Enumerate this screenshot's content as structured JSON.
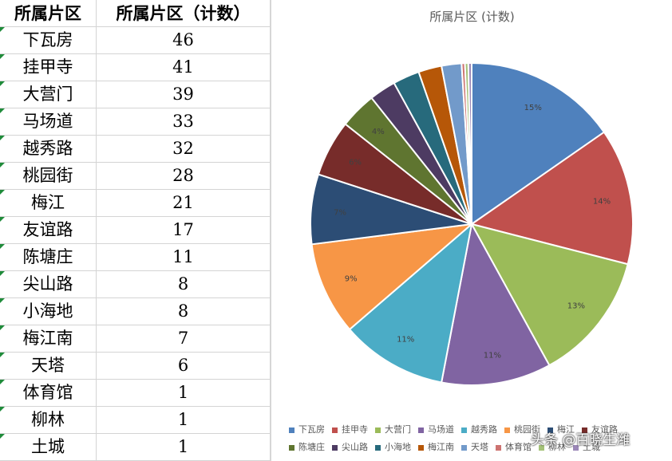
{
  "table": {
    "headers": [
      "所属片区",
      "所属片区（计数）"
    ],
    "rows": [
      {
        "name": "下瓦房",
        "count": "46"
      },
      {
        "name": "挂甲寺",
        "count": "41"
      },
      {
        "name": "大营门",
        "count": "39"
      },
      {
        "name": "马场道",
        "count": "33"
      },
      {
        "name": "越秀路",
        "count": "32"
      },
      {
        "name": "桃园街",
        "count": "28"
      },
      {
        "name": "梅江",
        "count": "21"
      },
      {
        "name": "友谊路",
        "count": "17"
      },
      {
        "name": "陈塘庄",
        "count": "11"
      },
      {
        "name": "尖山路",
        "count": "8"
      },
      {
        "name": "小海地",
        "count": "8"
      },
      {
        "name": "梅江南",
        "count": "7"
      },
      {
        "name": "天塔",
        "count": "6"
      },
      {
        "name": "体育馆",
        "count": "1"
      },
      {
        "name": "柳林",
        "count": "1"
      },
      {
        "name": "土城",
        "count": "1"
      }
    ]
  },
  "chart_data": {
    "type": "pie",
    "title": "所属片区 (计数)",
    "categories": [
      "下瓦房",
      "挂甲寺",
      "大营门",
      "马场道",
      "越秀路",
      "桃园街",
      "梅江",
      "友谊路",
      "陈塘庄",
      "尖山路",
      "小海地",
      "梅江南",
      "天塔",
      "体育馆",
      "柳林",
      "土城"
    ],
    "values": [
      46,
      41,
      39,
      33,
      32,
      28,
      21,
      17,
      11,
      8,
      8,
      7,
      6,
      1,
      1,
      1
    ],
    "data_labels": [
      "15%",
      "14%",
      "13%",
      "11%",
      "11%",
      "9%",
      "7%",
      "6%",
      "4%",
      "",
      "",
      "",
      "",
      "",
      "",
      ""
    ],
    "colors": [
      "#4f81bd",
      "#c0504d",
      "#9bbb59",
      "#8064a2",
      "#4bacc6",
      "#f79646",
      "#2c4d75",
      "#772c2a",
      "#5f7530",
      "#4d3b62",
      "#276a7c",
      "#b65708",
      "#729aca",
      "#cd7371",
      "#a5c279",
      "#9c88b7"
    ],
    "legend_position": "bottom",
    "legend_rows": [
      [
        "下瓦房",
        "挂甲寺",
        "大营门",
        "马场道",
        "越秀路",
        "桃园街",
        "梅江",
        "友谊路"
      ],
      [
        "陈塘庄",
        "尖山路",
        "小海地",
        "梅江南",
        "天塔",
        "体育馆",
        "柳林",
        "土城"
      ]
    ]
  },
  "watermark": "头条 @百晓生潍"
}
